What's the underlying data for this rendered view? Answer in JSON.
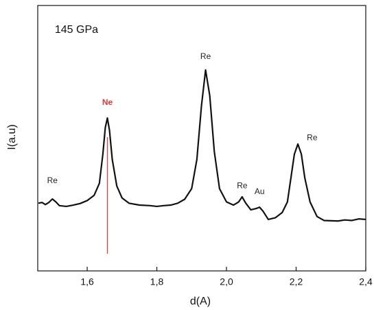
{
  "chart_data": {
    "type": "line",
    "xlabel": "d(A)",
    "ylabel": "I(a.u)",
    "xlim": [
      1.458,
      2.4
    ],
    "ylim": [
      0,
      100
    ],
    "xticks": [
      {
        "value": 1.6,
        "label": "1,6"
      },
      {
        "value": 1.8,
        "label": "1,8"
      },
      {
        "value": 2.0,
        "label": "2,0"
      },
      {
        "value": 2.2,
        "label": "2,2"
      },
      {
        "value": 2.4,
        "label": "2,4"
      }
    ],
    "x": [
      1.46,
      1.47,
      1.48,
      1.49,
      1.5,
      1.51,
      1.52,
      1.54,
      1.56,
      1.58,
      1.6,
      1.62,
      1.635,
      1.645,
      1.652,
      1.658,
      1.664,
      1.672,
      1.685,
      1.7,
      1.72,
      1.75,
      1.78,
      1.8,
      1.82,
      1.84,
      1.86,
      1.88,
      1.9,
      1.915,
      1.928,
      1.94,
      1.952,
      1.965,
      1.98,
      2.0,
      2.02,
      2.035,
      2.045,
      2.055,
      2.07,
      2.085,
      2.095,
      2.105,
      2.12,
      2.14,
      2.16,
      2.175,
      2.185,
      2.195,
      2.205,
      2.215,
      2.225,
      2.24,
      2.26,
      2.28,
      2.3,
      2.32,
      2.34,
      2.36,
      2.38,
      2.4
    ],
    "series": [
      {
        "color": "#111111",
        "values": [
          25.5,
          25.8,
          25.0,
          25.8,
          27.1,
          26.0,
          24.6,
          24.3,
          24.8,
          25.4,
          26.5,
          28.5,
          33,
          44,
          54,
          57.6,
          53,
          42,
          32,
          27.5,
          25.5,
          24.8,
          24.6,
          24.3,
          24.6,
          24.8,
          25.5,
          27,
          31,
          42,
          62,
          75.7,
          66,
          45,
          31,
          26,
          24.8,
          26,
          27.9,
          25.6,
          23,
          23.5,
          24.0,
          22.5,
          19.4,
          20,
          22,
          26,
          35,
          44,
          47.8,
          44,
          35,
          26,
          20.5,
          19,
          18.9,
          18.8,
          19.2,
          19.0,
          19.6,
          19.4
        ]
      }
    ],
    "reference_line": {
      "x": 1.658,
      "y": [
        6.5,
        50.4
      ],
      "color": "#e03a3a"
    },
    "annotations": [
      {
        "text": "145 GPa",
        "x": 1.507,
        "y": 90.7,
        "color": "#111111"
      },
      {
        "text": "Re",
        "x": 1.5,
        "y": 33.9,
        "color": "#222222"
      },
      {
        "text": "Ne",
        "x": 1.658,
        "y": 63.3,
        "color": "#e03a3a"
      },
      {
        "text": "Re",
        "x": 1.94,
        "y": 80.6,
        "color": "#222222"
      },
      {
        "text": "Re",
        "x": 2.045,
        "y": 32,
        "color": "#222222"
      },
      {
        "text": "Au",
        "x": 2.095,
        "y": 29.7,
        "color": "#222222"
      },
      {
        "text": "Re",
        "x": 2.246,
        "y": 50.1,
        "color": "#222222"
      }
    ]
  }
}
